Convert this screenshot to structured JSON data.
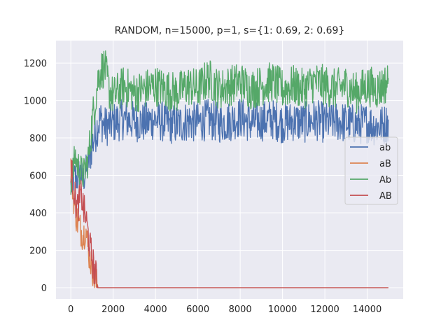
{
  "chart_data": {
    "type": "line",
    "title": "RANDOM, n=15000, p=1, s={1: 0.69, 2: 0.69}",
    "xlabel": "",
    "ylabel": "",
    "xlim": [
      -700,
      15700
    ],
    "ylim": [
      -60,
      1320
    ],
    "x_ticks": [
      0,
      2000,
      4000,
      6000,
      8000,
      10000,
      12000,
      14000
    ],
    "y_ticks": [
      0,
      200,
      400,
      600,
      800,
      1000,
      1200
    ],
    "x_tick_labels": [
      "0",
      "2000",
      "4000",
      "6000",
      "8000",
      "10000",
      "12000",
      "14000"
    ],
    "y_tick_labels": [
      "0",
      "200",
      "400",
      "600",
      "800",
      "1000",
      "1200"
    ],
    "grid": true,
    "background": "#eaeaf2",
    "legend_position": "center-right",
    "series": [
      {
        "name": "ab",
        "color": "#4c72b0",
        "x": [
          0,
          100,
          200,
          300,
          400,
          500,
          600,
          700,
          800,
          900,
          1000,
          1100,
          1200,
          1300,
          1400,
          1600,
          1800,
          2000,
          2500,
          3000,
          3500,
          4000,
          4500,
          5000,
          5500,
          6000,
          6500,
          7000,
          7500,
          8000,
          8500,
          9000,
          9500,
          10000,
          10500,
          11000,
          11500,
          12000,
          12500,
          13000,
          13500,
          14000,
          14500,
          15000
        ],
        "values": [
          540,
          560,
          600,
          580,
          620,
          600,
          580,
          620,
          640,
          700,
          760,
          800,
          840,
          880,
          900,
          860,
          870,
          880,
          900,
          890,
          880,
          900,
          880,
          870,
          890,
          880,
          900,
          880,
          890,
          910,
          880,
          890,
          900,
          880,
          890,
          880,
          900,
          880,
          890,
          880,
          870,
          880,
          860,
          880
        ]
      },
      {
        "name": "aB",
        "color": "#dd8452",
        "x": [
          0,
          100,
          200,
          300,
          400,
          500,
          600,
          700,
          800,
          900,
          1000,
          1100,
          1200,
          1300,
          1400,
          15000
        ],
        "values": [
          640,
          520,
          420,
          360,
          330,
          300,
          280,
          320,
          220,
          160,
          120,
          60,
          20,
          0,
          0,
          0
        ]
      },
      {
        "name": "Ab",
        "color": "#55a868",
        "x": [
          0,
          100,
          200,
          300,
          400,
          500,
          600,
          700,
          800,
          900,
          1000,
          1100,
          1200,
          1300,
          1400,
          1600,
          1800,
          2000,
          2500,
          3000,
          3500,
          4000,
          4500,
          5000,
          5500,
          6000,
          6500,
          7000,
          7500,
          8000,
          8500,
          9000,
          9500,
          10000,
          10500,
          11000,
          11500,
          12000,
          12500,
          13000,
          13500,
          14000,
          14500,
          15000
        ],
        "values": [
          560,
          620,
          700,
          660,
          640,
          620,
          600,
          640,
          680,
          760,
          880,
          960,
          1040,
          1120,
          1160,
          1180,
          1060,
          1020,
          1080,
          1040,
          1060,
          1080,
          1060,
          1040,
          1080,
          1060,
          1120,
          1060,
          1080,
          1100,
          1060,
          1080,
          1100,
          1060,
          1080,
          1060,
          1100,
          1080,
          1060,
          1080,
          1040,
          1080,
          1060,
          1100
        ]
      },
      {
        "name": "AB",
        "color": "#c44e52",
        "x": [
          0,
          100,
          200,
          300,
          400,
          500,
          600,
          700,
          800,
          900,
          1000,
          1100,
          1200,
          1300,
          1400,
          15000
        ],
        "values": [
          650,
          560,
          480,
          420,
          460,
          500,
          420,
          380,
          300,
          220,
          160,
          100,
          50,
          0,
          0,
          0
        ]
      }
    ]
  }
}
